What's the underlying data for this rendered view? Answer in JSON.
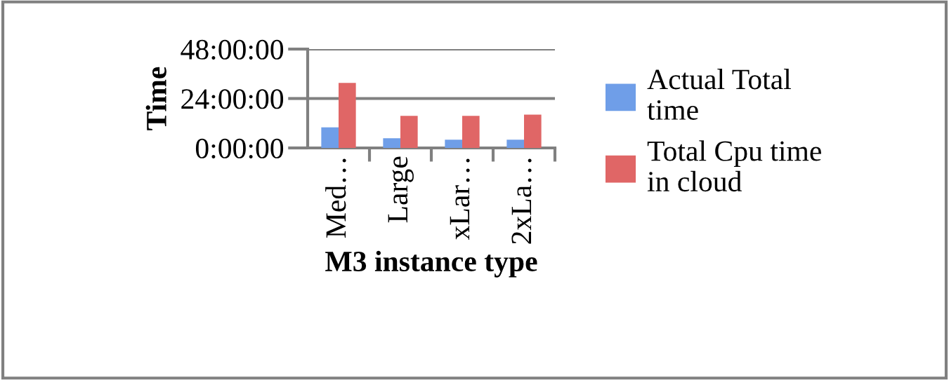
{
  "chart_data": {
    "type": "bar",
    "xlabel": "M3 instance type",
    "ylabel": "Time",
    "categories": [
      "Med…",
      "Large",
      "xLar…",
      "2xLa…"
    ],
    "series": [
      {
        "name": "Actual Total time",
        "color": "#6f9ee8",
        "values": [
          10.0,
          4.7,
          4.0,
          4.0
        ]
      },
      {
        "name": "Total Cpu time in cloud",
        "color": "#e06666",
        "values": [
          31.6,
          15.6,
          15.6,
          16.2
        ]
      }
    ],
    "ylim": [
      0,
      48
    ],
    "yticks": [
      {
        "value": 0,
        "label": "0:00:00"
      },
      {
        "value": 24,
        "label": "24:00:00"
      },
      {
        "value": 48,
        "label": "48:00:00"
      }
    ],
    "grid": "y",
    "legend": "right"
  }
}
